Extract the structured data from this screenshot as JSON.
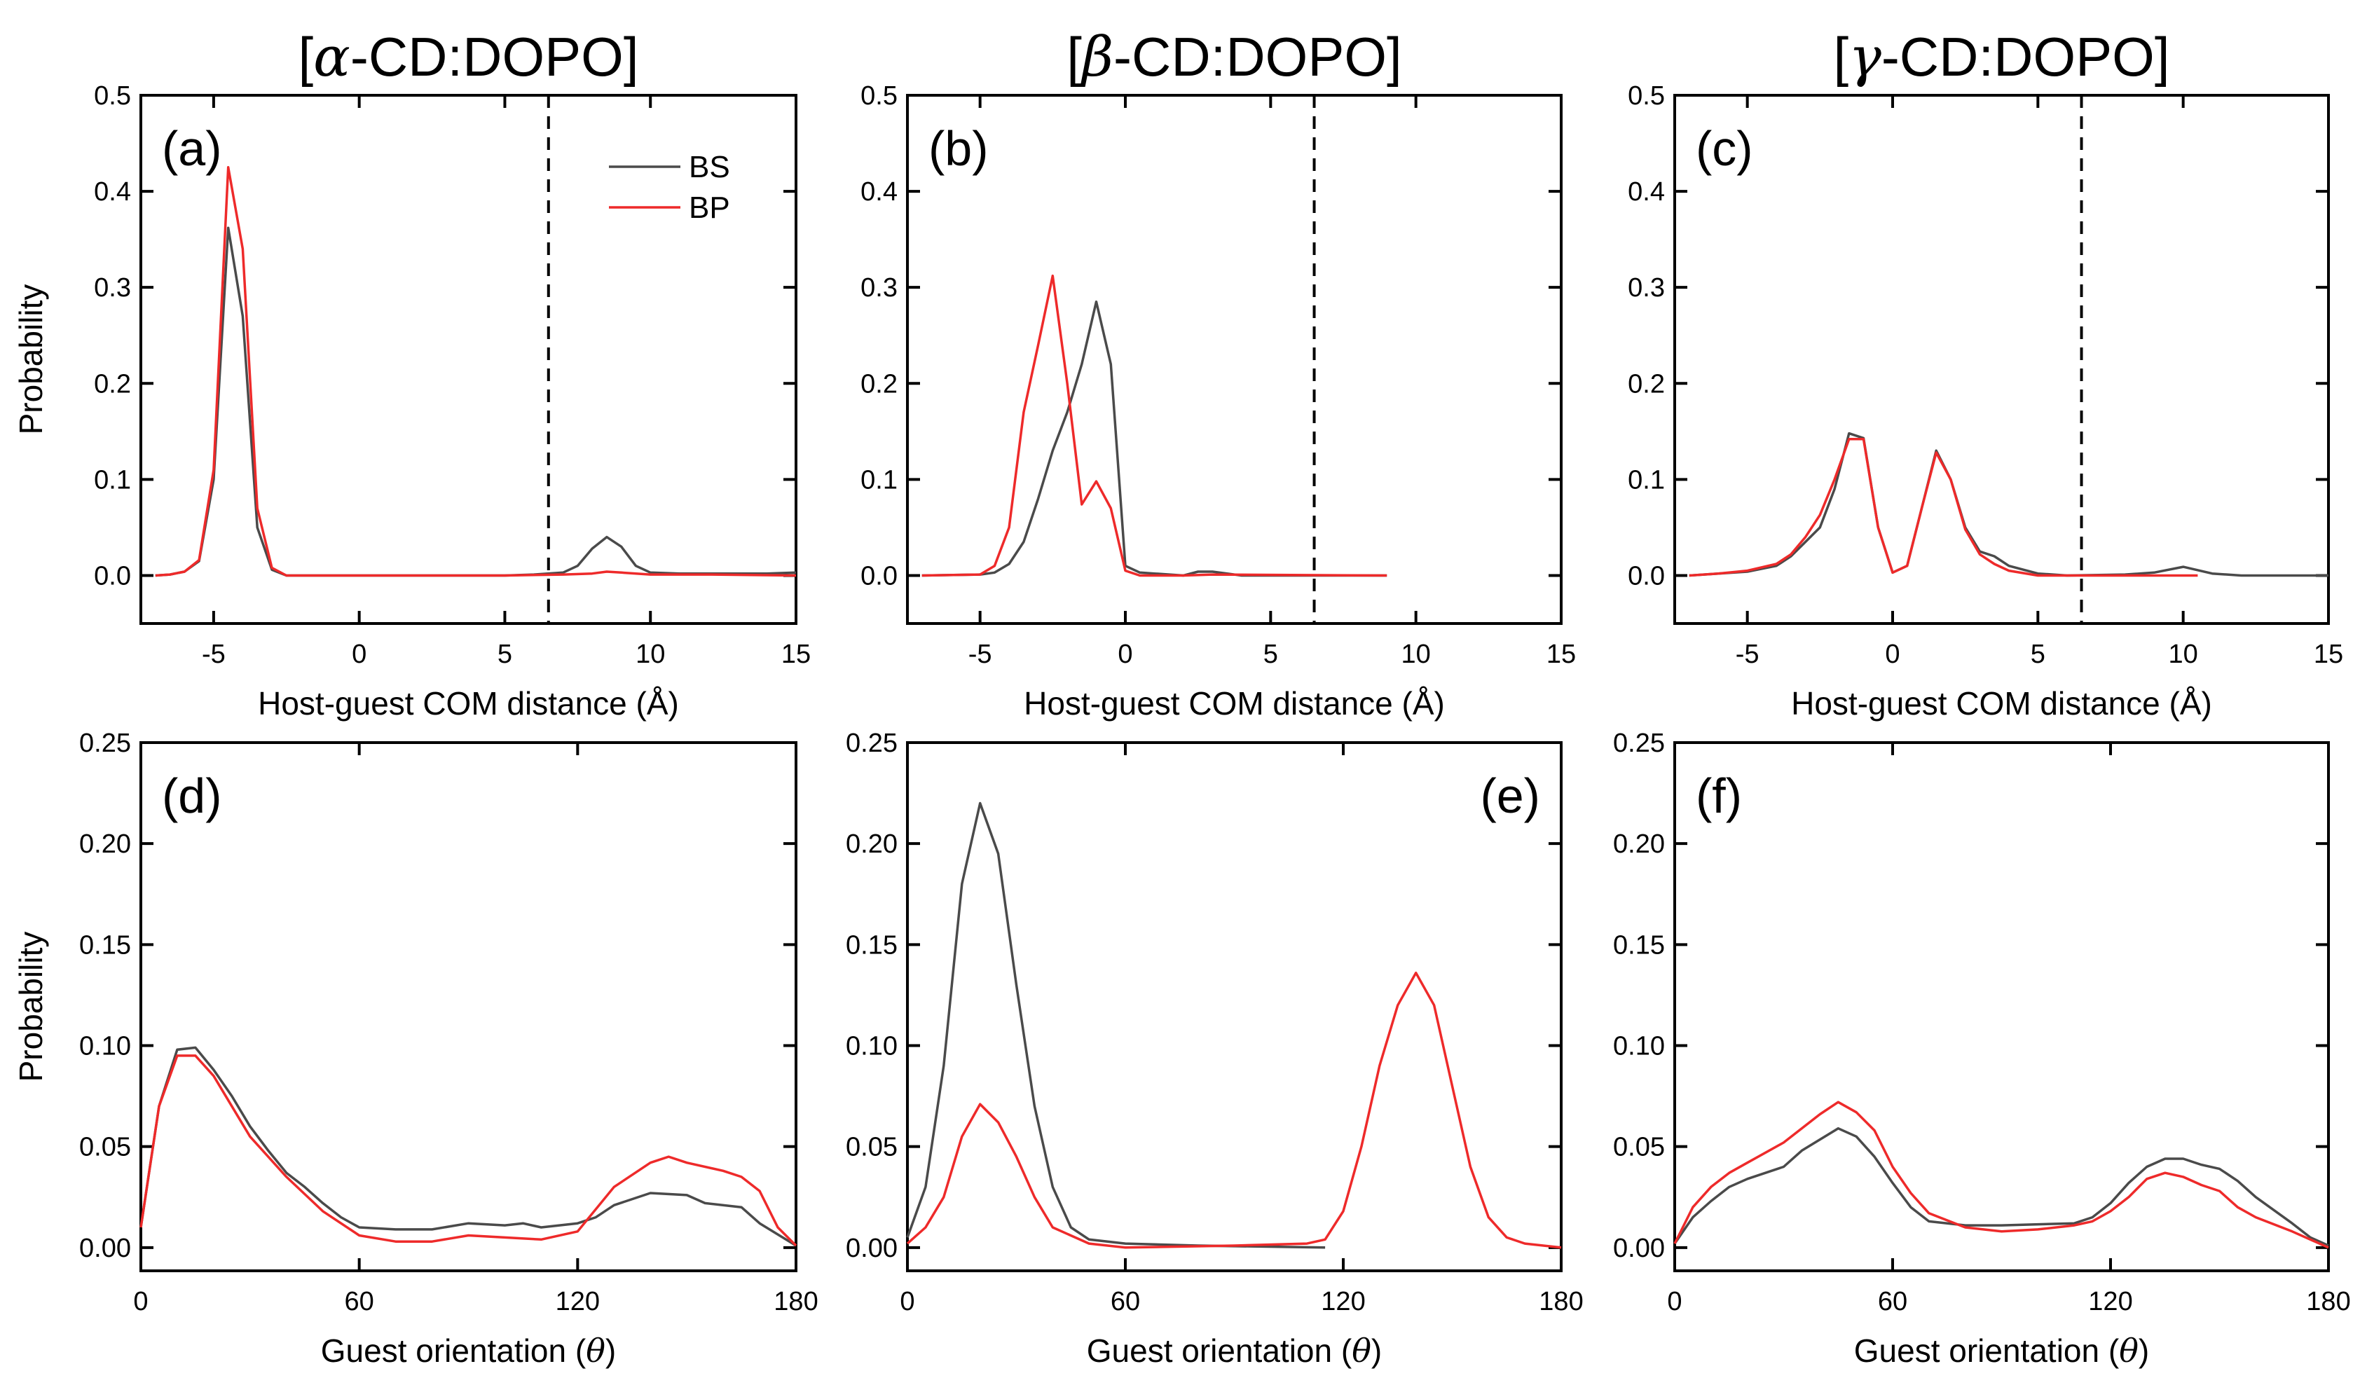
{
  "colors": {
    "BS": "#4a4a4a",
    "BP": "#ee2a2a",
    "axis": "#000000"
  },
  "chart_data": [
    {
      "id": "a",
      "type": "line",
      "title_prefix": "[",
      "title_greek": "α",
      "title_suffix": "-CD:DOPO]",
      "panel_label": "(a)",
      "label_position": "top-left",
      "xlabel": "Host-guest COM distance (Å)",
      "ylabel": "Probability",
      "xlim": [
        -7.5,
        15
      ],
      "ylim": [
        -0.05,
        0.5
      ],
      "xticks": [
        -5,
        0,
        5,
        10,
        15
      ],
      "xtick_labels": [
        "-5",
        "0",
        "5",
        "10",
        "15"
      ],
      "yticks": [
        0,
        0.1,
        0.2,
        0.3,
        0.4,
        0.5
      ],
      "ytick_labels": [
        "0.0",
        "0.1",
        "0.2",
        "0.3",
        "0.4",
        "0.5"
      ],
      "vline": 6.5,
      "legend": {
        "placement": "top-right",
        "entries": [
          "BS",
          "BP"
        ]
      },
      "series": [
        {
          "name": "BS",
          "x": [
            -7,
            -6.5,
            -6,
            -5.5,
            -5,
            -4.5,
            -4,
            -3.5,
            -3,
            -2.5,
            0,
            5,
            6,
            7,
            7.5,
            8,
            8.5,
            9,
            9.5,
            10,
            11,
            12,
            13,
            14,
            15
          ],
          "y": [
            0,
            0.001,
            0.004,
            0.015,
            0.1,
            0.362,
            0.27,
            0.05,
            0.006,
            0,
            0,
            0,
            0.001,
            0.003,
            0.01,
            0.028,
            0.04,
            0.03,
            0.01,
            0.003,
            0.002,
            0.002,
            0.002,
            0.002,
            0.003
          ]
        },
        {
          "name": "BP",
          "x": [
            -7,
            -6.5,
            -6,
            -5.5,
            -5,
            -4.5,
            -4,
            -3.5,
            -3,
            -2.5,
            0,
            5,
            7,
            8,
            8.5,
            9,
            10,
            12,
            15
          ],
          "y": [
            0,
            0.001,
            0.004,
            0.016,
            0.11,
            0.425,
            0.34,
            0.07,
            0.008,
            0,
            0,
            0,
            0.001,
            0.002,
            0.004,
            0.003,
            0.001,
            0.001,
            0
          ]
        }
      ]
    },
    {
      "id": "b",
      "type": "line",
      "title_prefix": "[",
      "title_greek": "β",
      "title_suffix": "-CD:DOPO]",
      "panel_label": "(b)",
      "label_position": "top-left",
      "xlabel": "Host-guest COM distance (Å)",
      "ylabel": "",
      "xlim": [
        -7.5,
        15
      ],
      "ylim": [
        -0.05,
        0.5
      ],
      "xticks": [
        -5,
        0,
        5,
        10,
        15
      ],
      "xtick_labels": [
        "-5",
        "0",
        "5",
        "10",
        "15"
      ],
      "yticks": [
        0,
        0.1,
        0.2,
        0.3,
        0.4,
        0.5
      ],
      "ytick_labels": [
        "0.0",
        "0.1",
        "0.2",
        "0.3",
        "0.4",
        "0.5"
      ],
      "vline": 6.5,
      "series": [
        {
          "name": "BS",
          "x": [
            -7,
            -5,
            -4.5,
            -4,
            -3.5,
            -3,
            -2.5,
            -2,
            -1.5,
            -1,
            -0.5,
            0,
            0.5,
            1,
            2,
            2.5,
            3,
            3.5,
            4,
            9
          ],
          "y": [
            0,
            0.001,
            0.003,
            0.012,
            0.035,
            0.08,
            0.13,
            0.17,
            0.22,
            0.285,
            0.22,
            0.01,
            0.003,
            0.002,
            0,
            0.004,
            0.004,
            0.002,
            0,
            0
          ]
        },
        {
          "name": "BP",
          "x": [
            -7,
            -5,
            -4.5,
            -4,
            -3.5,
            -3,
            -2.5,
            -2,
            -1.5,
            -1,
            -0.5,
            0,
            0.5,
            1,
            2,
            3,
            9
          ],
          "y": [
            0,
            0.001,
            0.01,
            0.05,
            0.17,
            0.24,
            0.312,
            0.2,
            0.074,
            0.098,
            0.07,
            0.005,
            0,
            0,
            0,
            0.001,
            0
          ]
        }
      ]
    },
    {
      "id": "c",
      "type": "line",
      "title_prefix": "[",
      "title_greek": "γ",
      "title_suffix": "-CD:DOPO]",
      "panel_label": "(c)",
      "label_position": "top-left",
      "xlabel": "Host-guest COM distance (Å)",
      "ylabel": "",
      "xlim": [
        -7.5,
        15
      ],
      "ylim": [
        -0.05,
        0.5
      ],
      "xticks": [
        -5,
        0,
        5,
        10,
        15
      ],
      "xtick_labels": [
        "-5",
        "0",
        "5",
        "10",
        "15"
      ],
      "yticks": [
        0,
        0.1,
        0.2,
        0.3,
        0.4,
        0.5
      ],
      "ytick_labels": [
        "0.0",
        "0.1",
        "0.2",
        "0.3",
        "0.4",
        "0.5"
      ],
      "vline": 6.5,
      "series": [
        {
          "name": "BS",
          "x": [
            -7,
            -6,
            -5,
            -4,
            -3.5,
            -3,
            -2.5,
            -2,
            -1.5,
            -1,
            -0.5,
            0,
            0.5,
            1,
            1.5,
            2,
            2.5,
            3,
            3.5,
            4,
            5,
            6,
            8,
            9,
            10,
            11,
            12,
            15
          ],
          "y": [
            0,
            0.002,
            0.004,
            0.01,
            0.02,
            0.035,
            0.05,
            0.09,
            0.148,
            0.143,
            0.05,
            0.003,
            0.01,
            0.07,
            0.13,
            0.1,
            0.05,
            0.025,
            0.02,
            0.01,
            0.002,
            0,
            0.001,
            0.003,
            0.009,
            0.002,
            0,
            0
          ]
        },
        {
          "name": "BP",
          "x": [
            -7,
            -6,
            -5,
            -4,
            -3.5,
            -3,
            -2.5,
            -2,
            -1.5,
            -1,
            -0.5,
            0,
            0.5,
            1,
            1.5,
            2,
            2.5,
            3,
            3.5,
            4,
            5,
            6,
            8,
            10.5
          ],
          "y": [
            0,
            0.002,
            0.005,
            0.012,
            0.022,
            0.04,
            0.063,
            0.1,
            0.142,
            0.142,
            0.05,
            0.003,
            0.01,
            0.07,
            0.128,
            0.1,
            0.048,
            0.022,
            0.012,
            0.005,
            0,
            0,
            0,
            0
          ]
        }
      ]
    },
    {
      "id": "d",
      "type": "line",
      "panel_label": "(d)",
      "label_position": "top-left",
      "xlabel_prefix": "Guest orientation (",
      "xlabel_var": "θ",
      "xlabel_suffix": ")",
      "ylabel": "Probability",
      "xlim": [
        0,
        180
      ],
      "ylim": [
        -0.0115,
        0.25
      ],
      "xticks": [
        0,
        60,
        120,
        180
      ],
      "xtick_labels": [
        "0",
        "60",
        "120",
        "180"
      ],
      "yticks": [
        0,
        0.05,
        0.1,
        0.15,
        0.2,
        0.25
      ],
      "ytick_labels": [
        "0.00",
        "0.05",
        "0.10",
        "0.15",
        "0.20",
        "0.25"
      ],
      "series": [
        {
          "name": "BS",
          "x": [
            0,
            5,
            10,
            15,
            20,
            25,
            30,
            35,
            40,
            45,
            50,
            55,
            60,
            70,
            80,
            90,
            100,
            105,
            110,
            120,
            125,
            130,
            140,
            150,
            155,
            165,
            170,
            180
          ],
          "y": [
            0.01,
            0.07,
            0.098,
            0.099,
            0.088,
            0.075,
            0.06,
            0.048,
            0.037,
            0.03,
            0.022,
            0.015,
            0.01,
            0.009,
            0.009,
            0.012,
            0.011,
            0.012,
            0.01,
            0.012,
            0.015,
            0.021,
            0.027,
            0.026,
            0.022,
            0.02,
            0.012,
            0.001
          ]
        },
        {
          "name": "BP",
          "x": [
            0,
            5,
            10,
            15,
            20,
            30,
            40,
            50,
            60,
            70,
            80,
            90,
            100,
            110,
            120,
            130,
            140,
            145,
            150,
            160,
            165,
            170,
            175,
            180
          ],
          "y": [
            0.01,
            0.07,
            0.095,
            0.095,
            0.085,
            0.055,
            0.035,
            0.018,
            0.006,
            0.003,
            0.003,
            0.006,
            0.005,
            0.004,
            0.008,
            0.03,
            0.042,
            0.045,
            0.042,
            0.038,
            0.035,
            0.028,
            0.01,
            0.001
          ]
        }
      ]
    },
    {
      "id": "e",
      "type": "line",
      "panel_label": "(e)",
      "label_position": "top-right",
      "xlabel_prefix": "Guest orientation (",
      "xlabel_var": "θ",
      "xlabel_suffix": ")",
      "ylabel": "",
      "xlim": [
        0,
        180
      ],
      "ylim": [
        -0.0115,
        0.25
      ],
      "xticks": [
        0,
        60,
        120,
        180
      ],
      "xtick_labels": [
        "0",
        "60",
        "120",
        "180"
      ],
      "yticks": [
        0,
        0.05,
        0.1,
        0.15,
        0.2,
        0.25
      ],
      "ytick_labels": [
        "0.00",
        "0.05",
        "0.10",
        "0.15",
        "0.20",
        "0.25"
      ],
      "series": [
        {
          "name": "BS",
          "x": [
            0,
            5,
            10,
            15,
            20,
            25,
            30,
            35,
            40,
            45,
            50,
            60,
            80,
            115
          ],
          "y": [
            0.005,
            0.03,
            0.09,
            0.18,
            0.22,
            0.195,
            0.13,
            0.07,
            0.03,
            0.01,
            0.004,
            0.002,
            0.001,
            0
          ]
        },
        {
          "name": "BP",
          "x": [
            0,
            5,
            10,
            15,
            20,
            25,
            30,
            35,
            40,
            50,
            60,
            90,
            110,
            115,
            120,
            125,
            130,
            135,
            140,
            145,
            150,
            155,
            160,
            165,
            170,
            180
          ],
          "y": [
            0.002,
            0.01,
            0.025,
            0.055,
            0.071,
            0.062,
            0.045,
            0.025,
            0.01,
            0.002,
            0,
            0.001,
            0.002,
            0.004,
            0.018,
            0.05,
            0.09,
            0.12,
            0.136,
            0.12,
            0.08,
            0.04,
            0.015,
            0.005,
            0.002,
            0
          ]
        }
      ]
    },
    {
      "id": "f",
      "type": "line",
      "panel_label": "(f)",
      "label_position": "top-left",
      "xlabel_prefix": "Guest orientation (",
      "xlabel_var": "θ",
      "xlabel_suffix": ")",
      "ylabel": "",
      "xlim": [
        0,
        180
      ],
      "ylim": [
        -0.0115,
        0.25
      ],
      "xticks": [
        0,
        60,
        120,
        180
      ],
      "xtick_labels": [
        "0",
        "60",
        "120",
        "180"
      ],
      "yticks": [
        0,
        0.05,
        0.1,
        0.15,
        0.2,
        0.25
      ],
      "ytick_labels": [
        "0.00",
        "0.05",
        "0.10",
        "0.15",
        "0.20",
        "0.25"
      ],
      "series": [
        {
          "name": "BS",
          "x": [
            0,
            5,
            10,
            15,
            20,
            30,
            35,
            45,
            50,
            55,
            60,
            65,
            70,
            80,
            90,
            110,
            115,
            120,
            125,
            130,
            135,
            140,
            145,
            150,
            155,
            160,
            170,
            175,
            180
          ],
          "y": [
            0.002,
            0.015,
            0.023,
            0.03,
            0.034,
            0.04,
            0.048,
            0.059,
            0.055,
            0.045,
            0.032,
            0.02,
            0.013,
            0.011,
            0.011,
            0.012,
            0.015,
            0.022,
            0.032,
            0.04,
            0.044,
            0.044,
            0.041,
            0.039,
            0.033,
            0.025,
            0.012,
            0.005,
            0.001
          ]
        },
        {
          "name": "BP",
          "x": [
            0,
            5,
            10,
            15,
            20,
            30,
            40,
            45,
            50,
            55,
            60,
            65,
            70,
            80,
            90,
            100,
            110,
            115,
            120,
            125,
            130,
            135,
            140,
            145,
            150,
            155,
            160,
            170,
            180
          ],
          "y": [
            0.002,
            0.02,
            0.03,
            0.037,
            0.042,
            0.052,
            0.066,
            0.072,
            0.067,
            0.058,
            0.04,
            0.027,
            0.017,
            0.01,
            0.008,
            0.009,
            0.011,
            0.013,
            0.018,
            0.025,
            0.034,
            0.037,
            0.035,
            0.031,
            0.028,
            0.02,
            0.015,
            0.008,
            0
          ]
        }
      ]
    }
  ]
}
